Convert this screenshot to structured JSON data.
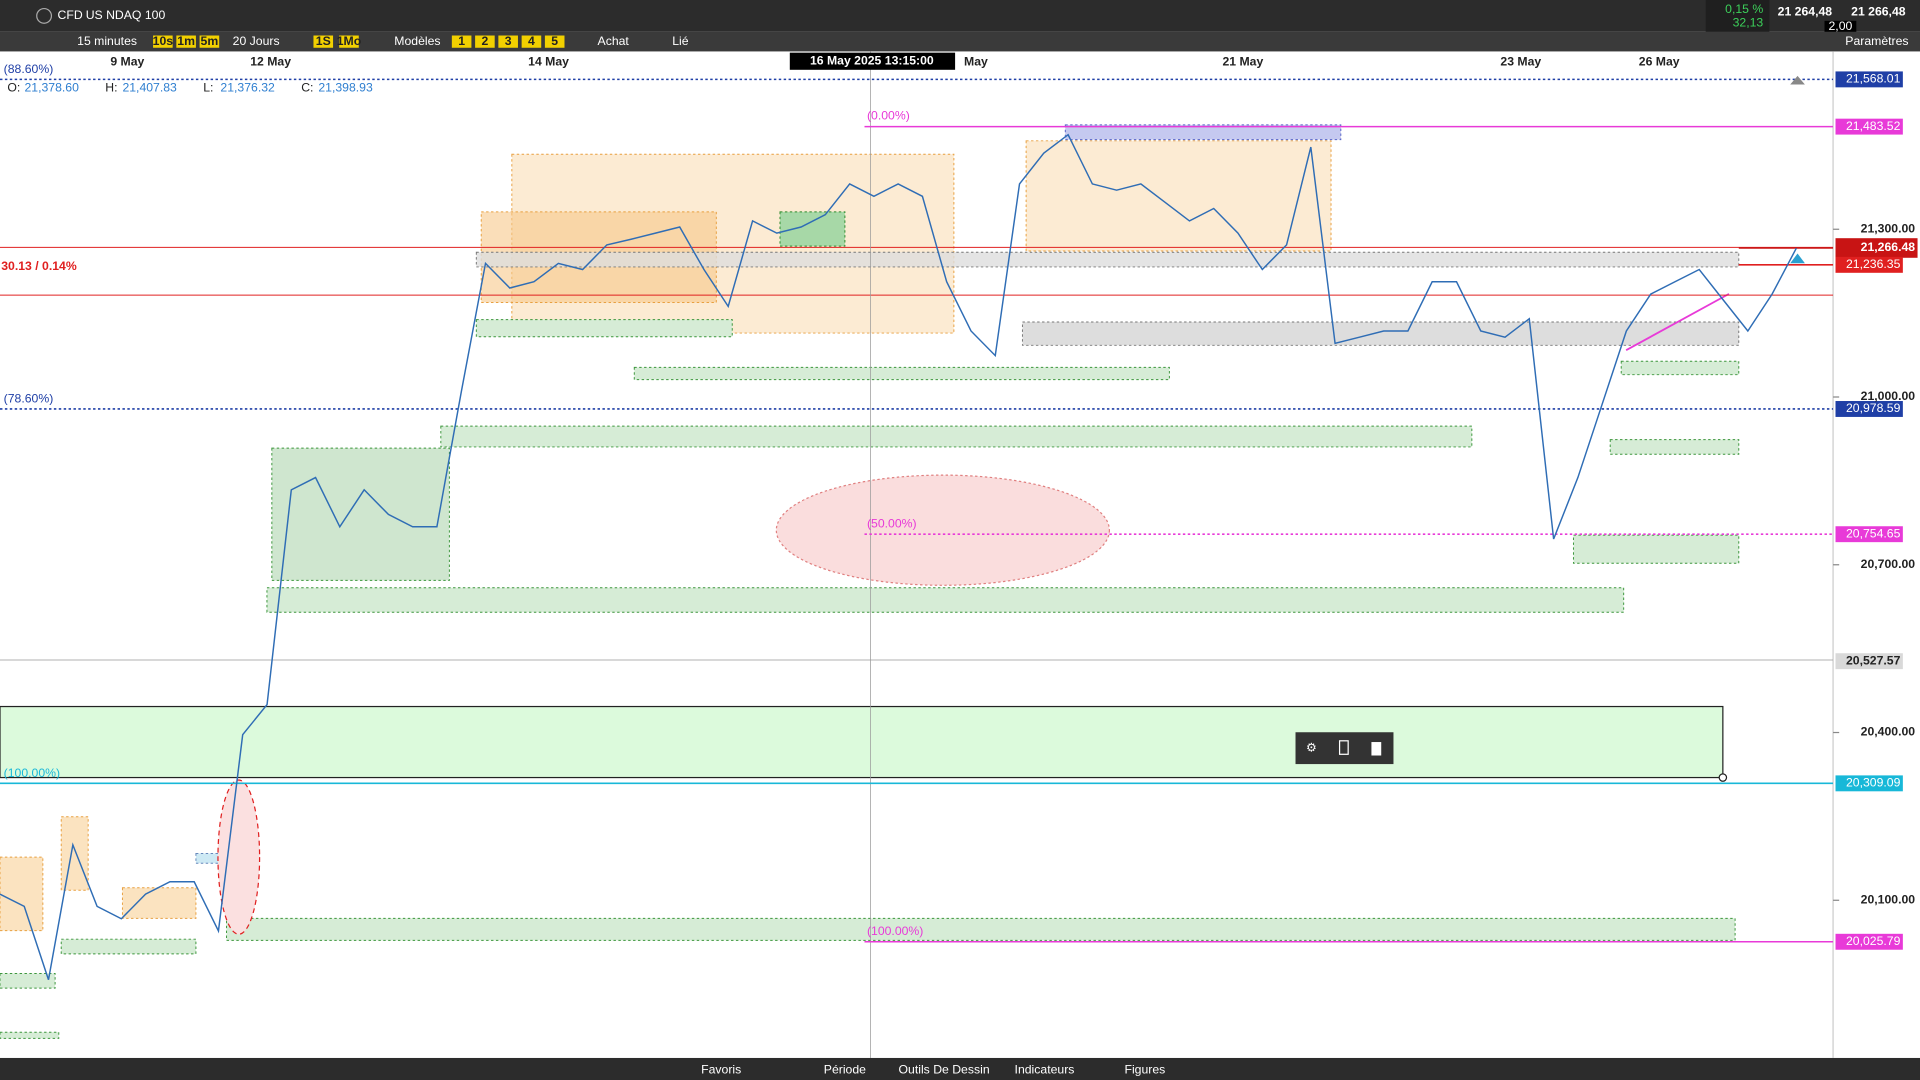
{
  "header": {
    "badge": "CFD",
    "instrument": "US NDAQ 100",
    "change_pct": "0,15 %",
    "change": "32,13",
    "bid": "21 264,48",
    "ask": "21 266,48",
    "spread": "2,00"
  },
  "toolbar": {
    "period": "15 minutes",
    "quick": [
      "10s",
      "1m",
      "5m"
    ],
    "range": "20 Jours",
    "quick2": [
      "1S",
      "1Mo"
    ],
    "templates": "Modèles",
    "slots": [
      "1",
      "2",
      "3",
      "4",
      "5"
    ],
    "buy": "Achat",
    "link": "Lié",
    "settings": "Paramètres"
  },
  "ohlc": [
    {
      "key": "O:",
      "value": "21,378.60"
    },
    {
      "key": "H:",
      "value": "21,407.83"
    },
    {
      "key": "L:",
      "value": "21,376.32"
    },
    {
      "key": "C:",
      "value": "21,398.93"
    }
  ],
  "crosshair": "16 May 2025 13:15:00",
  "dates": [
    "9 May",
    "12 May",
    "14 May",
    "May",
    "21 May",
    "23 May",
    "26 May"
  ],
  "annotations": {
    "measure": "30.13 / 0.14%",
    "fib": [
      "(88.60%)",
      "(0.00%)",
      "(78.60%)",
      "(50.00%)",
      "(100.00%)",
      "(100.00%)"
    ]
  },
  "chart_data": {
    "type": "line",
    "color": "#2f6db5",
    "values": [
      20111,
      20089,
      19958,
      20199,
      20089,
      20067,
      20111,
      20133,
      20133,
      20045,
      20396,
      20450,
      20834,
      20856,
      20768,
      20834,
      20790,
      20768,
      20768,
      21009,
      21239,
      21195,
      21206,
      21239,
      21228,
      21272,
      21282,
      21293,
      21304,
      21228,
      21162,
      21315,
      21293,
      21304,
      21326,
      21381,
      21359,
      21381,
      21359,
      21206,
      21118,
      21074,
      21381,
      21436,
      21469,
      21381,
      21370,
      21381,
      21348,
      21315,
      21337,
      21293,
      21228,
      21272,
      21447,
      21096,
      21107,
      21118,
      21118,
      21206,
      21206,
      21118,
      21107,
      21140,
      20746,
      20856,
      20987,
      21118,
      21184,
      21206,
      21228,
      21173,
      21118,
      21184,
      21266
    ],
    "ylim": [
      19818,
      21618
    ],
    "yticks": [
      {
        "value": 20100,
        "label": "20,100.00"
      },
      {
        "value": 20400,
        "label": "20,400.00"
      },
      {
        "value": 20700,
        "label": "20,700.00"
      },
      {
        "value": 21000,
        "label": "21,000.00"
      },
      {
        "value": 21300,
        "label": "21,300.00"
      }
    ],
    "price_levels": [
      {
        "value": 21568.01,
        "label": "21,568.01",
        "color": "#1f3fa6"
      },
      {
        "value": 21483.52,
        "label": "21,483.52",
        "color": "#e83ad8"
      },
      {
        "value": 21266.48,
        "label": "21,266.48",
        "color": "#c81414"
      },
      {
        "value": 21236.35,
        "label": "21,236.35",
        "color": "#e02020"
      },
      {
        "value": 20978.59,
        "label": "20,978.59",
        "color": "#1f3fa6"
      },
      {
        "value": 20754.65,
        "label": "20,754.65",
        "color": "#e83ad8"
      },
      {
        "value": 20527.57,
        "label": "20,527.57",
        "color": "#d9d9d9"
      },
      {
        "value": 20309.09,
        "label": "20,309.09",
        "color": "#18b8d8"
      },
      {
        "value": 20025.79,
        "label": "20,025.79",
        "color": "#e83ad8"
      }
    ]
  },
  "footer": {
    "tabs": [
      "Favoris",
      "Période",
      "Outils De Dessin",
      "Indicateurs",
      "Figures"
    ]
  }
}
